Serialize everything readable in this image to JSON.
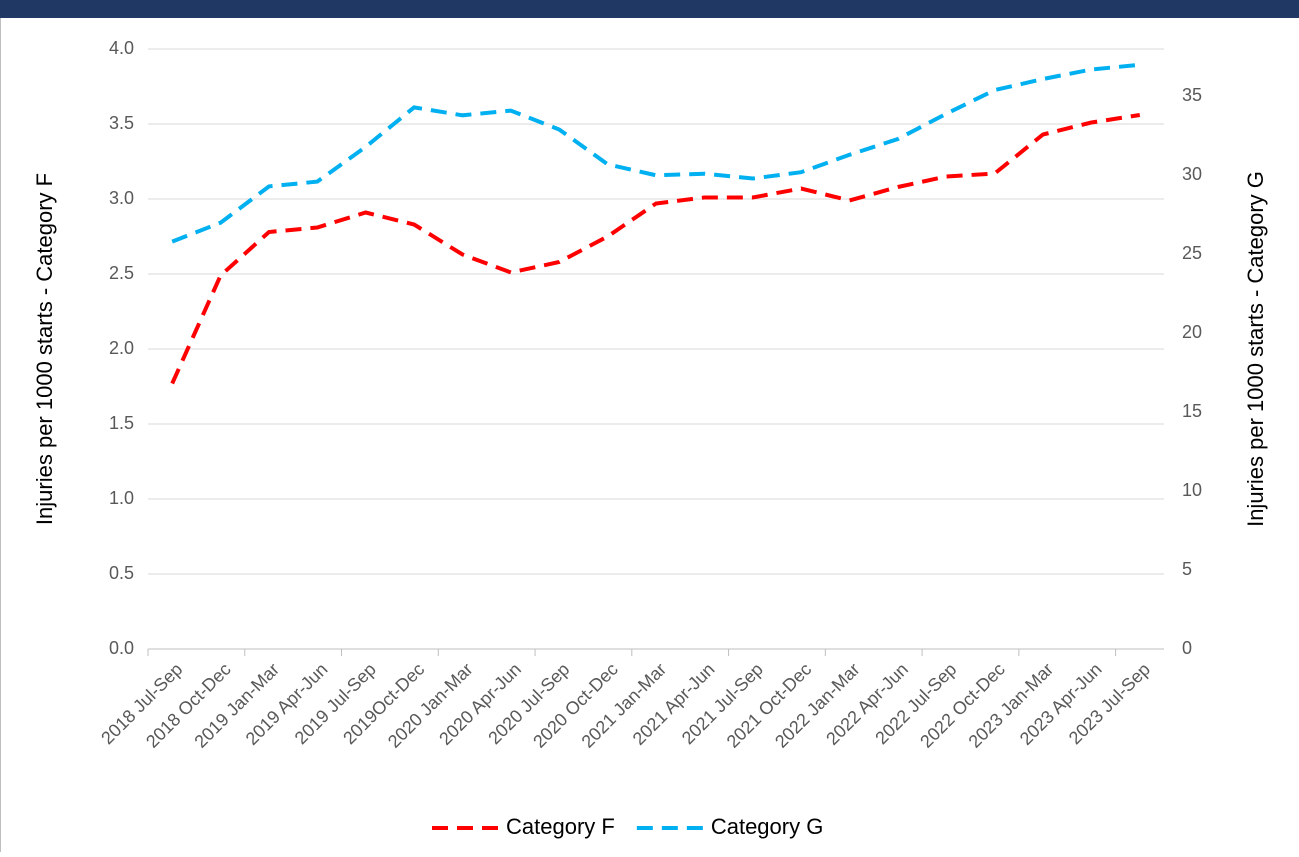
{
  "chart_data": {
    "type": "line",
    "categories": [
      "2018 Jul-Sep",
      "2018 Oct-Dec",
      "2019 Jan-Mar",
      "2019 Apr-Jun",
      "2019 Jul-Sep",
      "2019Oct-Dec",
      "2020 Jan-Mar",
      "2020 Apr-Jun",
      "2020 Jul-Sep",
      "2020 Oct-Dec",
      "2021 Jan-Mar",
      "2021 Apr-Jun",
      "2021 Jul-Sep",
      "2021 Oct-Dec",
      "2022 Jan-Mar",
      "2022 Apr-Jun",
      "2022 Jul-Sep",
      "2022 Oct-Dec",
      "2023 Jan-Mar",
      "2023 Apr-Jun",
      "2023 Jul-Sep"
    ],
    "series": [
      {
        "name": "Category F",
        "color": "#ff0000",
        "values": [
          1.77,
          2.49,
          2.78,
          2.81,
          2.91,
          2.83,
          2.63,
          2.51,
          2.58,
          2.75,
          2.97,
          3.01,
          3.01,
          3.07,
          2.99,
          3.08,
          3.15,
          3.17,
          3.43,
          3.51,
          3.56
        ]
      },
      {
        "name": "Category G",
        "color": "#00b0f0",
        "axis": "y2",
        "values": [
          25.8,
          27.0,
          29.3,
          29.6,
          31.8,
          34.3,
          33.8,
          34.1,
          32.9,
          30.7,
          30.0,
          30.1,
          29.8,
          30.2,
          31.3,
          32.3,
          33.9,
          35.4,
          36.1,
          36.7,
          37.0
        ]
      }
    ],
    "ylabel": "Injuries per 1000 starts - Category F",
    "y2label": "Injuries per 1000 starts - Category G",
    "ylim": [
      0,
      4.0
    ],
    "yticks": [
      {
        "value": 0,
        "label": "0.0"
      },
      0.5,
      {
        "value": 1,
        "label": "1.0"
      },
      1.5,
      {
        "value": 2,
        "label": "2.0"
      },
      2.5,
      {
        "value": 3,
        "label": "3.0"
      },
      3.5,
      {
        "value": 4,
        "label": "4.0"
      }
    ],
    "y2lim": [
      0,
      38
    ],
    "y2ticks": [
      0,
      5,
      10,
      15,
      20,
      25,
      30,
      35
    ],
    "grid": true,
    "legend": "bottom",
    "line_style": "dashed"
  }
}
